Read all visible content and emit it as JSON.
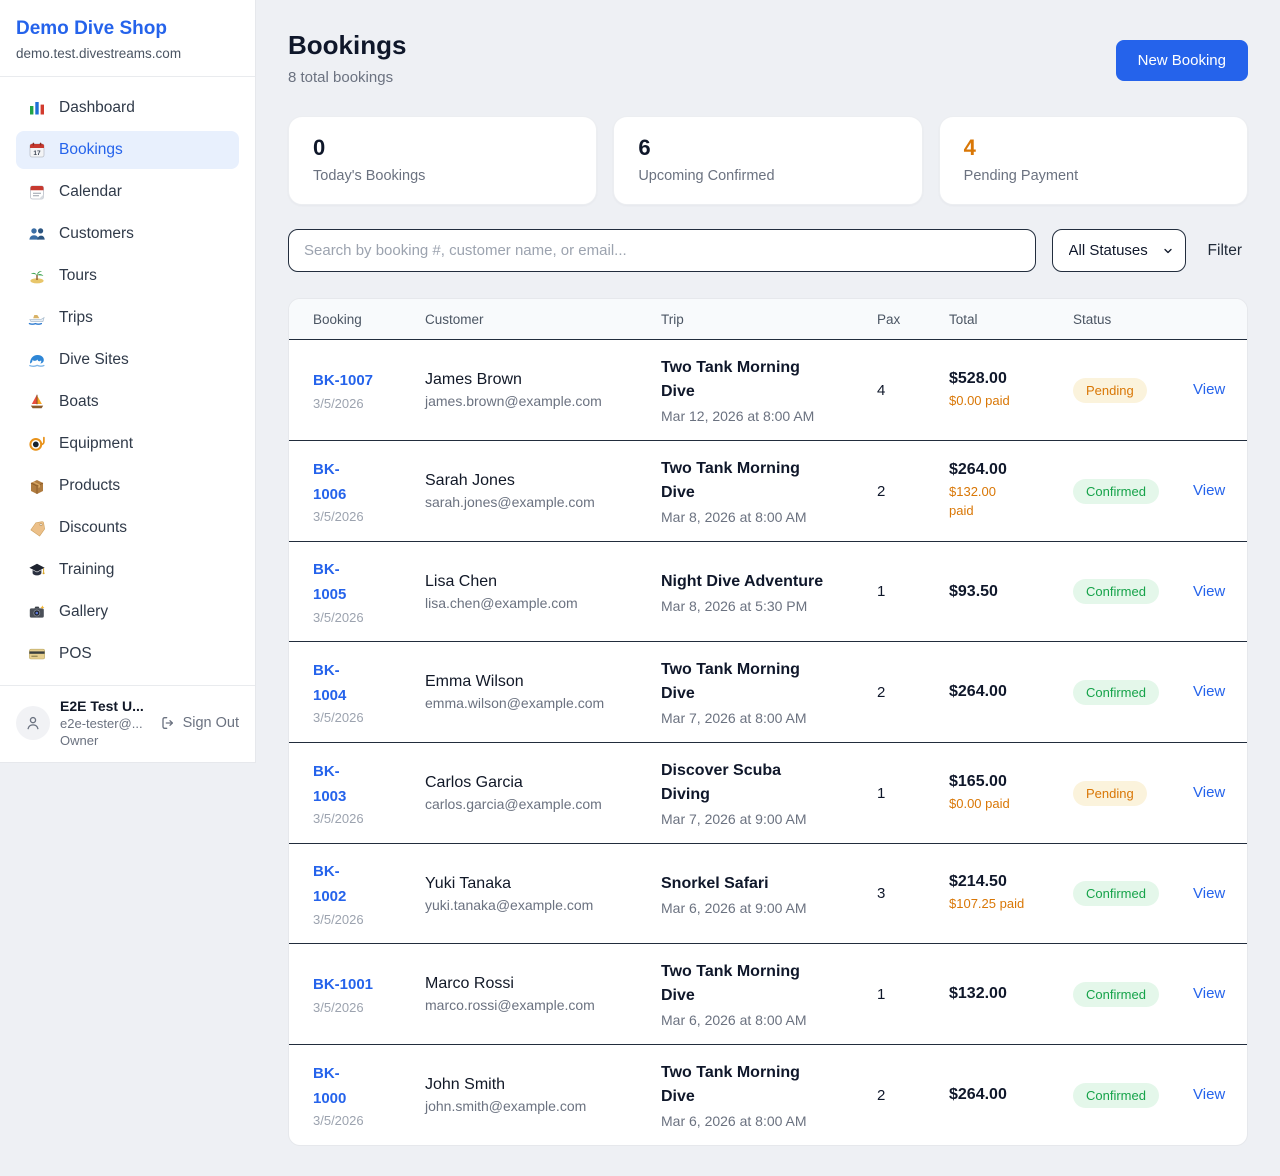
{
  "colors": {
    "accent_blue": "#2563eb",
    "pending_orange": "#d97706",
    "confirmed_green": "#16a34a",
    "page_background": "#eef0f4"
  },
  "sidebar": {
    "brand": {
      "name": "Demo Dive Shop",
      "domain": "demo.test.divestreams.com"
    },
    "nav": [
      {
        "label": "Dashboard",
        "icon": "bar-chart",
        "active": false
      },
      {
        "label": "Bookings",
        "icon": "calendar-date",
        "active": true
      },
      {
        "label": "Calendar",
        "icon": "tear-calendar",
        "active": false
      },
      {
        "label": "Customers",
        "icon": "people",
        "active": false
      },
      {
        "label": "Tours",
        "icon": "island",
        "active": false
      },
      {
        "label": "Trips",
        "icon": "speedboat",
        "active": false
      },
      {
        "label": "Dive Sites",
        "icon": "wave",
        "active": false
      },
      {
        "label": "Boats",
        "icon": "sailboat",
        "active": false
      },
      {
        "label": "Equipment",
        "icon": "dive-mask",
        "active": false
      },
      {
        "label": "Products",
        "icon": "package",
        "active": false
      },
      {
        "label": "Discounts",
        "icon": "tag",
        "active": false
      },
      {
        "label": "Training",
        "icon": "graduation-cap",
        "active": false
      },
      {
        "label": "Gallery",
        "icon": "camera",
        "active": false
      },
      {
        "label": "POS",
        "icon": "credit-card",
        "active": false
      }
    ],
    "user": {
      "name": "E2E Test U...",
      "email": "e2e-tester@...",
      "role": "Owner",
      "sign_out_label": "Sign Out"
    }
  },
  "header": {
    "title": "Bookings",
    "subtitle": "8 total bookings",
    "new_booking_label": "New Booking"
  },
  "stats": [
    {
      "value": "0",
      "label": "Today's Bookings",
      "color": "#0f172a"
    },
    {
      "value": "6",
      "label": "Upcoming Confirmed",
      "color": "#0f172a"
    },
    {
      "value": "4",
      "label": "Pending Payment",
      "color": "#d97706"
    }
  ],
  "controls": {
    "search_placeholder": "Search by booking #, customer name, or email...",
    "status_filter_value": "All Statuses",
    "filter_label": "Filter"
  },
  "table": {
    "columns": [
      "Booking",
      "Customer",
      "Trip",
      "Pax",
      "Total",
      "Status"
    ],
    "view_label": "View",
    "rows": [
      {
        "booking_id": "BK-1007",
        "booking_date": "3/5/2026",
        "customer": "James Brown",
        "email": "james.brown@example.com",
        "trip": "Two Tank Morning\nDive",
        "trip_datetime": "Mar 12, 2026 at 8:00 AM",
        "pax": "4",
        "total": "$528.00",
        "paid": "$0.00 paid",
        "status": "Pending"
      },
      {
        "booking_id": "BK-\n1006",
        "booking_date": "3/5/2026",
        "customer": "Sarah Jones",
        "email": "sarah.jones@example.com",
        "trip": "Two Tank Morning\nDive",
        "trip_datetime": "Mar 8, 2026 at 8:00 AM",
        "pax": "2",
        "total": "$264.00",
        "paid": "$132.00\npaid",
        "status": "Confirmed"
      },
      {
        "booking_id": "BK-\n1005",
        "booking_date": "3/5/2026",
        "customer": "Lisa Chen",
        "email": "lisa.chen@example.com",
        "trip": "Night Dive Adventure",
        "trip_datetime": "Mar 8, 2026 at 5:30 PM",
        "pax": "1",
        "total": "$93.50",
        "paid": null,
        "status": "Confirmed"
      },
      {
        "booking_id": "BK-\n1004",
        "booking_date": "3/5/2026",
        "customer": "Emma Wilson",
        "email": "emma.wilson@example.com",
        "trip": "Two Tank Morning\nDive",
        "trip_datetime": "Mar 7, 2026 at 8:00 AM",
        "pax": "2",
        "total": "$264.00",
        "paid": null,
        "status": "Confirmed"
      },
      {
        "booking_id": "BK-\n1003",
        "booking_date": "3/5/2026",
        "customer": "Carlos Garcia",
        "email": "carlos.garcia@example.com",
        "trip": "Discover Scuba\nDiving",
        "trip_datetime": "Mar 7, 2026 at 9:00 AM",
        "pax": "1",
        "total": "$165.00",
        "paid": "$0.00 paid",
        "status": "Pending"
      },
      {
        "booking_id": "BK-\n1002",
        "booking_date": "3/5/2026",
        "customer": "Yuki Tanaka",
        "email": "yuki.tanaka@example.com",
        "trip": "Snorkel Safari",
        "trip_datetime": "Mar 6, 2026 at 9:00 AM",
        "pax": "3",
        "total": "$214.50",
        "paid": "$107.25 paid",
        "status": "Confirmed"
      },
      {
        "booking_id": "BK-1001",
        "booking_date": "3/5/2026",
        "customer": "Marco Rossi",
        "email": "marco.rossi@example.com",
        "trip": "Two Tank Morning\nDive",
        "trip_datetime": "Mar 6, 2026 at 8:00 AM",
        "pax": "1",
        "total": "$132.00",
        "paid": null,
        "status": "Confirmed"
      },
      {
        "booking_id": "BK-\n1000",
        "booking_date": "3/5/2026",
        "customer": "John Smith",
        "email": "john.smith@example.com",
        "trip": "Two Tank Morning\nDive",
        "trip_datetime": "Mar 6, 2026 at 8:00 AM",
        "pax": "2",
        "total": "$264.00",
        "paid": null,
        "status": "Confirmed"
      }
    ]
  }
}
